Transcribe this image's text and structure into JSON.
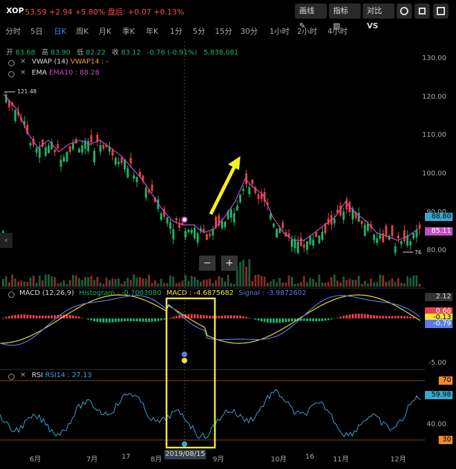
{
  "header": {
    "symbol": "XOP",
    "price_change": "53.59 +2.94 +5.80% 盘后: +0.07 +0.13%",
    "draw_label": "画线",
    "indicator_label": "指标",
    "compare_label": "对比",
    "compare_badge": "VS"
  },
  "tabs": [
    "分时",
    "5日",
    "日K",
    "周K",
    "月K",
    "季K",
    "年K",
    "1分",
    "5分",
    "15分",
    "30分",
    "1小时",
    "2小时",
    "4小时"
  ],
  "active_tab": "日K",
  "ohlc": {
    "open_label": "开",
    "open": "83.68",
    "high_label": "高",
    "high": "83.90",
    "low_label": "低",
    "low": "82.22",
    "close_label": "收",
    "close": "83.12",
    "change": "-0.76 (-0.91%)",
    "volume": "5,838,081"
  },
  "indicators": {
    "vwap_name": "VWAP (14)",
    "vwap_value": "VWAP14 : -",
    "ema_name": "EMA",
    "ema_value": "EMA10 : 88.28",
    "macd_name": "MACD (12,26,9)",
    "macd_hist": "Histogram : -0.7003080",
    "macd_val": "MACD : -4.6875682",
    "macd_signal": "Signal : -3.9872602",
    "rsi_name": "RSI",
    "rsi_value": "RSI14 : 27.13"
  },
  "price_axis": [
    "130.00",
    "120.00",
    "110.00",
    "100.00",
    "90.00",
    "80.00"
  ],
  "price_tags": {
    "a": "88.80",
    "b": "85.11"
  },
  "marker_high": "121.48",
  "marker_low": "76",
  "zoom_minus": "−",
  "zoom_plus": "+",
  "macd_axis": {
    "top": "2.12",
    "bottom": "-5.00"
  },
  "macd_tags": {
    "a": "0.66",
    "b": "-0.13",
    "c": "-0.79"
  },
  "rsi_axis": {
    "mid": "40.00"
  },
  "rsi_tags": {
    "a": "70",
    "b": "59.98",
    "c": "30"
  },
  "date_tooltip": "2019/08/15",
  "months": [
    "6月",
    "7月",
    "17",
    "8月",
    "9月",
    "10月",
    "16",
    "11月",
    "12月"
  ],
  "colors": {
    "up": "#e84141",
    "down": "#1fb36b",
    "ema": "#c74cc7",
    "macd": "#f0e040",
    "signal": "#5b7de6",
    "rsi": "#3ba7d0",
    "highlight": "#f4e64a"
  }
}
